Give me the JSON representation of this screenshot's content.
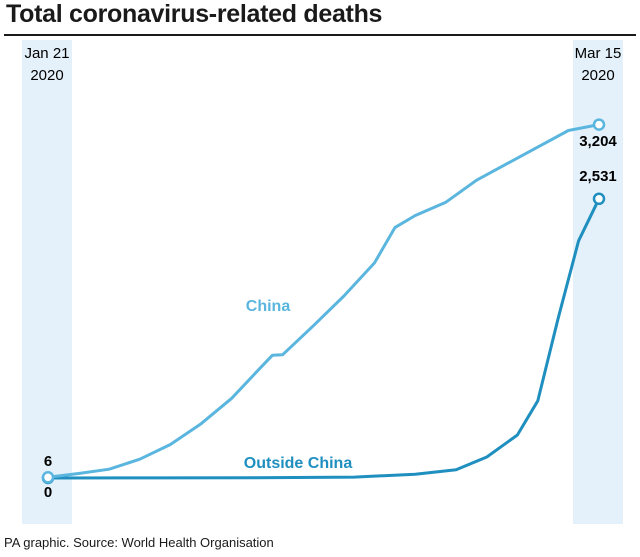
{
  "title": "Total coronavirus-related deaths",
  "footer": "PA graphic. Source: World Health Organisation",
  "colors": {
    "china": "#5ab6de",
    "outside_china": "#1f8fbf",
    "date_band": "#e4f1fa",
    "text": "#1a1a1a"
  },
  "chart_data": {
    "type": "line",
    "title": "Total coronavirus-related deaths",
    "x_start_label": {
      "month_day": "Jan 21",
      "year": "2020"
    },
    "x_end_label": {
      "month_day": "Mar 15",
      "year": "2020"
    },
    "x_range": [
      "2020-01-21",
      "2020-03-15"
    ],
    "ylim": [
      0,
      3300
    ],
    "grid": false,
    "legend": "inline labels on lines",
    "series": [
      {
        "name": "China",
        "x": [
          "2020-01-21",
          "2020-01-24",
          "2020-01-27",
          "2020-01-30",
          "2020-02-02",
          "2020-02-05",
          "2020-02-08",
          "2020-02-11",
          "2020-02-12",
          "2020-02-13",
          "2020-02-16",
          "2020-02-19",
          "2020-02-22",
          "2020-02-24",
          "2020-02-26",
          "2020-02-29",
          "2020-03-03",
          "2020-03-06",
          "2020-03-09",
          "2020-03-12",
          "2020-03-15"
        ],
        "y": [
          6,
          41,
          80,
          170,
          304,
          492,
          723,
          1017,
          1113,
          1118,
          1380,
          1650,
          1950,
          2270,
          2380,
          2500,
          2700,
          2850,
          3000,
          3150,
          3204
        ],
        "start_label": "6",
        "end_label": "3,204"
      },
      {
        "name": "Outside China",
        "x": [
          "2020-01-21",
          "2020-02-01",
          "2020-02-10",
          "2020-02-20",
          "2020-02-26",
          "2020-03-01",
          "2020-03-04",
          "2020-03-07",
          "2020-03-09",
          "2020-03-11",
          "2020-03-13",
          "2020-03-15"
        ],
        "y": [
          0,
          1,
          2,
          8,
          34,
          75,
          190,
          390,
          700,
          1450,
          2150,
          2531
        ],
        "start_label": "0",
        "end_label": "2,531"
      }
    ]
  }
}
